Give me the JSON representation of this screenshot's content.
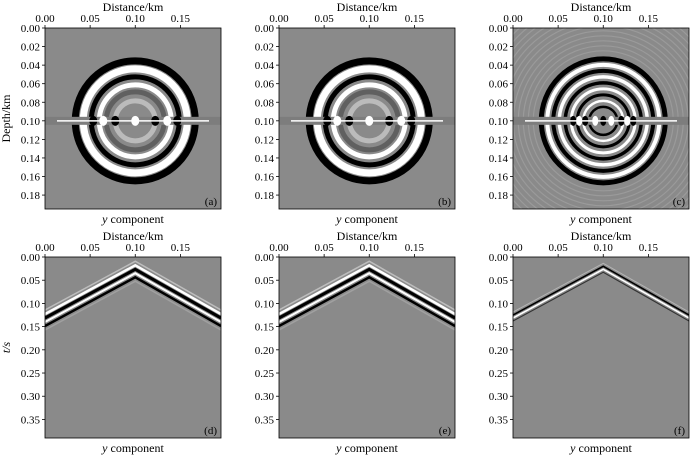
{
  "figure": {
    "top_row": {
      "x_axis_title": "Distance/km",
      "y_axis_title": "Depth/km",
      "x_ticks": [
        "0.00",
        "0.05",
        "0.10",
        "0.15"
      ],
      "y_ticks": [
        "0.00",
        "0.02",
        "0.04",
        "0.06",
        "0.08",
        "0.10",
        "0.12",
        "0.14",
        "0.16",
        "0.18"
      ],
      "x_range_km": [
        0,
        0.195
      ],
      "y_range_km": [
        0,
        0.195
      ]
    },
    "bottom_row": {
      "x_axis_title": "Distance/km",
      "y_axis_title": "t/s",
      "x_ticks": [
        "0.00",
        "0.05",
        "0.10",
        "0.15"
      ],
      "y_ticks": [
        "0.00",
        "0.05",
        "0.10",
        "0.15",
        "0.20",
        "0.25",
        "0.30",
        "0.35"
      ],
      "x_range_km": [
        0,
        0.195
      ],
      "y_range_s": [
        0,
        0.39
      ]
    },
    "component_caption_italic": "y",
    "component_caption_rest": " component",
    "panels": [
      {
        "id": "a",
        "label": "(a)",
        "row": "top",
        "col": 0,
        "kind": "wavefront"
      },
      {
        "id": "b",
        "label": "(b)",
        "row": "top",
        "col": 1,
        "kind": "wavefront"
      },
      {
        "id": "c",
        "label": "(c)",
        "row": "top",
        "col": 2,
        "kind": "wavefront-dense"
      },
      {
        "id": "d",
        "label": "(d)",
        "row": "bottom",
        "col": 0,
        "kind": "record"
      },
      {
        "id": "e",
        "label": "(e)",
        "row": "bottom",
        "col": 1,
        "kind": "record"
      },
      {
        "id": "f",
        "label": "(f)",
        "row": "bottom",
        "col": 2,
        "kind": "record-thin"
      }
    ],
    "background_gray": "#8a8a8a",
    "wave_dark": "#000000",
    "wave_light": "#ffffff"
  }
}
